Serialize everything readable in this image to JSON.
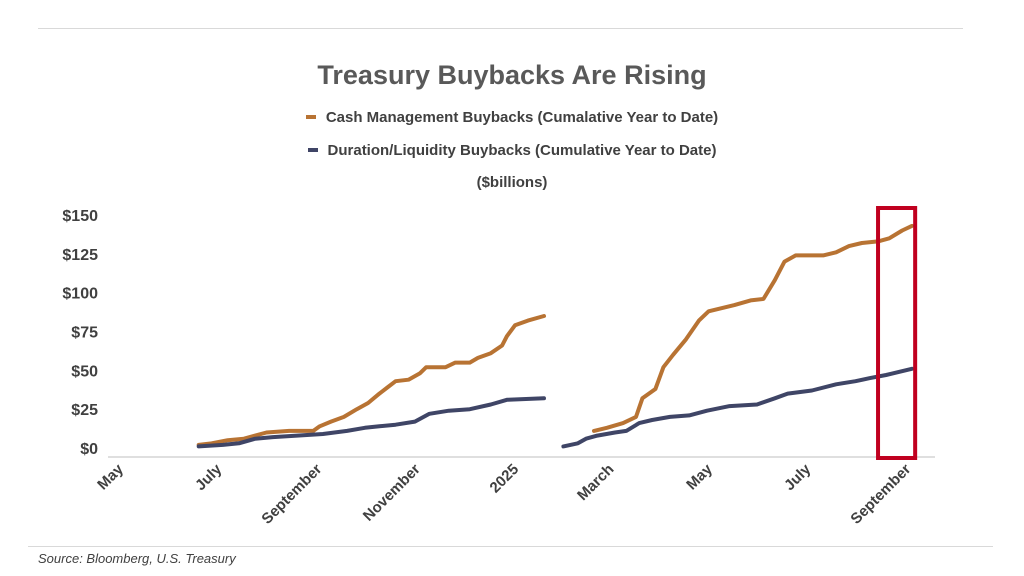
{
  "source": "Source: Bloomberg, U.S. Treasury",
  "chart_data": {
    "type": "line",
    "title": "Treasury Buybacks Are Rising",
    "subtitle": "($billions)",
    "legend_placement": "top-center",
    "grid": false,
    "ylim": [
      0,
      150
    ],
    "y_ticks": [
      0,
      25,
      50,
      75,
      100,
      125,
      150
    ],
    "y_tick_labels": [
      "$0",
      "$25",
      "$50",
      "$75",
      "$100",
      "$125",
      "$150"
    ],
    "x_ticks": [
      {
        "date": "2024-05-01",
        "label": "May"
      },
      {
        "date": "2024-07-01",
        "label": "July"
      },
      {
        "date": "2024-09-01",
        "label": "September"
      },
      {
        "date": "2024-11-01",
        "label": "November"
      },
      {
        "date": "2025-01-01",
        "label": "2025"
      },
      {
        "date": "2025-03-01",
        "label": "March"
      },
      {
        "date": "2025-05-01",
        "label": "May"
      },
      {
        "date": "2025-07-01",
        "label": "July"
      },
      {
        "date": "2025-09-01",
        "label": "September"
      }
    ],
    "highlight": {
      "from": "2025-08-15",
      "to": "2025-09-07",
      "color": "#c0001f"
    },
    "series": [
      {
        "name": "Cash Management Buybacks (Cumalative Year to Date)",
        "color": "#b87333",
        "segments": [
          [
            [
              "2024-06-20",
              2
            ],
            [
              "2024-06-28",
              3
            ],
            [
              "2024-07-08",
              5
            ],
            [
              "2024-07-18",
              6
            ],
            [
              "2024-07-25",
              8
            ],
            [
              "2024-08-01",
              10
            ],
            [
              "2024-08-15",
              11
            ],
            [
              "2024-08-30",
              11
            ],
            [
              "2024-09-03",
              14
            ],
            [
              "2024-09-10",
              17
            ],
            [
              "2024-09-18",
              20
            ],
            [
              "2024-09-26",
              25
            ],
            [
              "2024-10-03",
              29
            ],
            [
              "2024-10-10",
              35
            ],
            [
              "2024-10-15",
              39
            ],
            [
              "2024-10-20",
              43
            ],
            [
              "2024-10-28",
              44
            ],
            [
              "2024-11-04",
              48
            ],
            [
              "2024-11-08",
              52
            ],
            [
              "2024-11-20",
              52
            ],
            [
              "2024-11-26",
              55
            ],
            [
              "2024-12-05",
              55
            ],
            [
              "2024-12-10",
              58
            ],
            [
              "2024-12-18",
              61
            ],
            [
              "2024-12-25",
              66
            ],
            [
              "2024-12-28",
              72
            ],
            [
              "2025-01-02",
              79
            ],
            [
              "2025-01-10",
              82
            ],
            [
              "2025-01-20",
              85
            ]
          ],
          [
            [
              "2025-02-20",
              11
            ],
            [
              "2025-02-28",
              13
            ],
            [
              "2025-03-10",
              16
            ],
            [
              "2025-03-18",
              20
            ],
            [
              "2025-03-22",
              32
            ],
            [
              "2025-03-30",
              38
            ],
            [
              "2025-04-04",
              52
            ],
            [
              "2025-04-10",
              60
            ],
            [
              "2025-04-18",
              70
            ],
            [
              "2025-04-26",
              82
            ],
            [
              "2025-05-02",
              88
            ],
            [
              "2025-05-10",
              90
            ],
            [
              "2025-05-18",
              92
            ],
            [
              "2025-05-28",
              95
            ],
            [
              "2025-06-05",
              96
            ],
            [
              "2025-06-12",
              108
            ],
            [
              "2025-06-18",
              120
            ],
            [
              "2025-06-25",
              124
            ],
            [
              "2025-07-05",
              124
            ],
            [
              "2025-07-12",
              124
            ],
            [
              "2025-07-20",
              126
            ],
            [
              "2025-07-28",
              130
            ],
            [
              "2025-08-05",
              132
            ],
            [
              "2025-08-15",
              133
            ],
            [
              "2025-08-22",
              135
            ],
            [
              "2025-08-30",
              140
            ],
            [
              "2025-09-05",
              143
            ]
          ]
        ]
      },
      {
        "name": "Duration/Liquidity Buybacks (Cumulative Year to Date)",
        "color": "#3f4566",
        "segments": [
          [
            [
              "2024-06-20",
              1
            ],
            [
              "2024-07-05",
              2
            ],
            [
              "2024-07-15",
              3
            ],
            [
              "2024-07-25",
              6
            ],
            [
              "2024-08-05",
              7
            ],
            [
              "2024-08-20",
              8
            ],
            [
              "2024-09-05",
              9
            ],
            [
              "2024-09-20",
              11
            ],
            [
              "2024-10-01",
              13
            ],
            [
              "2024-10-10",
              14
            ],
            [
              "2024-10-20",
              15
            ],
            [
              "2024-11-01",
              17
            ],
            [
              "2024-11-10",
              22
            ],
            [
              "2024-11-22",
              24
            ],
            [
              "2024-12-05",
              25
            ],
            [
              "2024-12-18",
              28
            ],
            [
              "2024-12-28",
              31
            ],
            [
              "2025-01-20",
              32
            ]
          ],
          [
            [
              "2025-02-01",
              1
            ],
            [
              "2025-02-10",
              3
            ],
            [
              "2025-02-15",
              6
            ],
            [
              "2025-02-22",
              8
            ],
            [
              "2025-03-05",
              10
            ],
            [
              "2025-03-12",
              11
            ],
            [
              "2025-03-20",
              16
            ],
            [
              "2025-03-28",
              18
            ],
            [
              "2025-04-08",
              20
            ],
            [
              "2025-04-20",
              21
            ],
            [
              "2025-05-01",
              24
            ],
            [
              "2025-05-15",
              27
            ],
            [
              "2025-06-01",
              28
            ],
            [
              "2025-06-12",
              32
            ],
            [
              "2025-06-20",
              35
            ],
            [
              "2025-07-05",
              37
            ],
            [
              "2025-07-20",
              41
            ],
            [
              "2025-08-01",
              43
            ],
            [
              "2025-08-10",
              45
            ],
            [
              "2025-08-20",
              47
            ],
            [
              "2025-09-05",
              51
            ]
          ]
        ]
      }
    ]
  }
}
